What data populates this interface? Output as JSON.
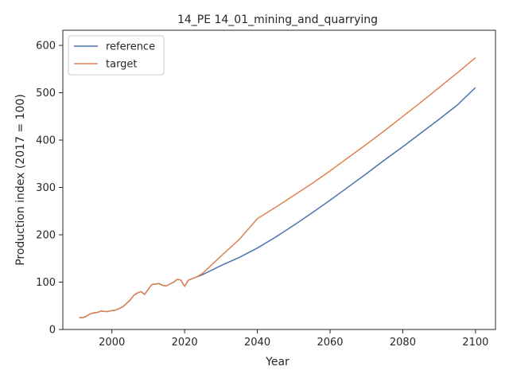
{
  "chart_data": {
    "type": "line",
    "title": "14_PE 14_01_mining_and_quarrying",
    "xlabel": "Year",
    "ylabel": "Production index (2017 = 100)",
    "xlim": [
      1986.5,
      2105.5
    ],
    "ylim": [
      0,
      632
    ],
    "xticks": [
      2000,
      2020,
      2040,
      2060,
      2080,
      2100
    ],
    "yticks": [
      0,
      100,
      200,
      300,
      400,
      500,
      600
    ],
    "grid": false,
    "legend": "top-left",
    "series": [
      {
        "name": "reference",
        "color": "#4c72b0",
        "x": [
          1991,
          1992,
          1993,
          1994,
          1995,
          1996,
          1997,
          1998,
          1999,
          2000,
          2001,
          2002,
          2003,
          2004,
          2005,
          2006,
          2007,
          2008,
          2009,
          2010,
          2011,
          2012,
          2013,
          2014,
          2015,
          2016,
          2017,
          2018,
          2019,
          2020,
          2021,
          2022,
          2023,
          2024,
          2025,
          2030,
          2035,
          2040,
          2045,
          2050,
          2055,
          2060,
          2065,
          2070,
          2075,
          2080,
          2085,
          2090,
          2095,
          2100
        ],
        "y": [
          25,
          25,
          28,
          33,
          35,
          36,
          39,
          38,
          38,
          40,
          41,
          44,
          48,
          55,
          62,
          72,
          77,
          80,
          74,
          85,
          95,
          96,
          97,
          93,
          92,
          96,
          100,
          106,
          104,
          91,
          104,
          107,
          110,
          113,
          116,
          135,
          152,
          172,
          195,
          220,
          246,
          273,
          301,
          329,
          358,
          386,
          415,
          444,
          474,
          511
        ]
      },
      {
        "name": "target",
        "color": "#dd8452",
        "x": [
          1991,
          1992,
          1993,
          1994,
          1995,
          1996,
          1997,
          1998,
          1999,
          2000,
          2001,
          2002,
          2003,
          2004,
          2005,
          2006,
          2007,
          2008,
          2009,
          2010,
          2011,
          2012,
          2013,
          2014,
          2015,
          2016,
          2017,
          2018,
          2019,
          2020,
          2021,
          2022,
          2023,
          2024,
          2025,
          2030,
          2035,
          2040,
          2045,
          2050,
          2055,
          2060,
          2065,
          2070,
          2075,
          2080,
          2085,
          2090,
          2095,
          2100
        ],
        "y": [
          25,
          25,
          28,
          33,
          35,
          36,
          39,
          38,
          38,
          40,
          41,
          44,
          48,
          55,
          62,
          72,
          77,
          80,
          74,
          85,
          95,
          96,
          97,
          93,
          92,
          96,
          100,
          106,
          104,
          91,
          104,
          107,
          110,
          114,
          119,
          155,
          190,
          234,
          258,
          283,
          308,
          335,
          363,
          391,
          420,
          450,
          480,
          511,
          542,
          574
        ]
      }
    ]
  }
}
